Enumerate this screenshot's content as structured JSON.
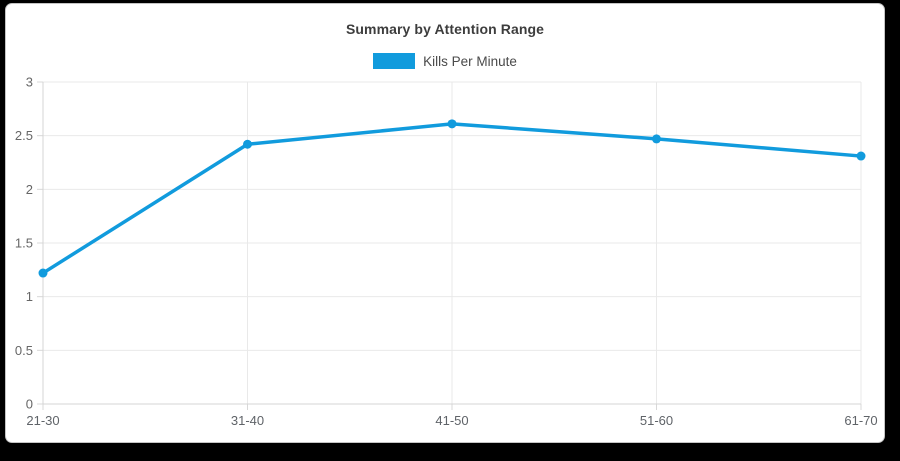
{
  "title": "Summary by Attention Range",
  "legend": {
    "label": "Kills Per Minute"
  },
  "chart_data": {
    "type": "line",
    "title": "Summary by Attention Range",
    "categories": [
      "21-30",
      "31-40",
      "41-50",
      "51-60",
      "61-70"
    ],
    "series": [
      {
        "name": "Kills Per Minute",
        "values": [
          1.22,
          2.42,
          2.61,
          2.47,
          2.31
        ],
        "color": "#119bdd"
      }
    ],
    "xlabel": "",
    "ylabel": "",
    "ylim": [
      0,
      3
    ],
    "ytick_step": 0.5,
    "ytick_labels": [
      "0",
      "0.5",
      "1",
      "1.5",
      "2",
      "2.5",
      "3"
    ],
    "grid": true,
    "legend_position": "top"
  }
}
